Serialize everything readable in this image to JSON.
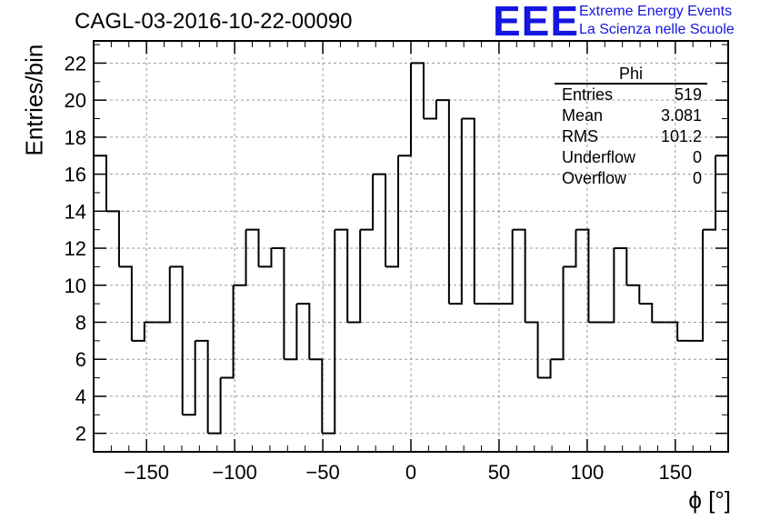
{
  "title": "CAGL-03-2016-10-22-00090",
  "logo": {
    "mark": "EEE",
    "line1": "Extreme Energy Events",
    "line2": "La Scienza nelle Scuole",
    "color": "#1515e0"
  },
  "stats": {
    "name": "Phi",
    "rows": [
      {
        "label": "Entries",
        "value": "519"
      },
      {
        "label": "Mean",
        "value": "3.081"
      },
      {
        "label": "RMS",
        "value": "101.2"
      },
      {
        "label": "Underflow",
        "value": "0"
      },
      {
        "label": "Overflow",
        "value": "0"
      }
    ]
  },
  "chart_data": {
    "type": "bar",
    "title": "CAGL-03-2016-10-22-00090",
    "xlabel": "ϕ [°]",
    "ylabel": "Entries/bin",
    "xlim": [
      -180,
      180
    ],
    "ylim": [
      1,
      23.2
    ],
    "bin_width": 7.2,
    "x_ticks": [
      -150,
      -100,
      -50,
      0,
      50,
      100,
      150
    ],
    "x_tick_labels": [
      "−150",
      "−100",
      "−50",
      "0",
      "50",
      "100",
      "150"
    ],
    "y_ticks": [
      2,
      4,
      6,
      8,
      10,
      12,
      14,
      16,
      18,
      20,
      22
    ],
    "grid": true,
    "values": [
      17,
      14,
      11,
      7,
      8,
      8,
      11,
      3,
      7,
      2,
      5,
      10,
      13,
      11,
      12,
      6,
      9,
      6,
      2,
      13,
      8,
      13,
      16,
      11,
      17,
      22,
      19,
      20,
      9,
      19,
      9,
      9,
      9,
      13,
      8,
      5,
      6,
      11,
      13,
      8,
      8,
      12,
      10,
      9,
      8,
      8,
      7,
      7,
      13,
      17
    ],
    "line_color": "#000000"
  }
}
